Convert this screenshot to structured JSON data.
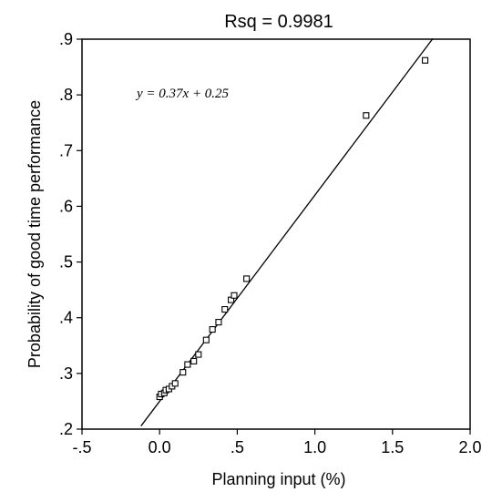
{
  "chart_data": {
    "type": "scatter",
    "title": "Rsq = 0.9981",
    "xlabel": "Planning input (%)",
    "ylabel": "Probability of good time performance",
    "xlim": [
      -0.5,
      2.0
    ],
    "ylim": [
      0.2,
      0.9
    ],
    "x_ticks": [
      {
        "value": -0.5,
        "label": "-.5"
      },
      {
        "value": 0.0,
        "label": "0.0"
      },
      {
        "value": 0.5,
        "label": ".5"
      },
      {
        "value": 1.0,
        "label": "1.0"
      },
      {
        "value": 1.5,
        "label": "1.5"
      },
      {
        "value": 2.0,
        "label": "2.0"
      }
    ],
    "y_ticks": [
      {
        "value": 0.2,
        "label": ".2"
      },
      {
        "value": 0.3,
        "label": ".3"
      },
      {
        "value": 0.4,
        "label": ".4"
      },
      {
        "value": 0.5,
        "label": ".5"
      },
      {
        "value": 0.6,
        "label": ".6"
      },
      {
        "value": 0.7,
        "label": ".7"
      },
      {
        "value": 0.8,
        "label": ".8"
      },
      {
        "value": 0.9,
        "label": ".9"
      }
    ],
    "annotation": "y = 0.37x + 0.25",
    "fit_line": {
      "slope": 0.37,
      "intercept": 0.25,
      "x_range": [
        -0.12,
        1.76
      ]
    },
    "grid": false,
    "marker": "hollow-square",
    "points": [
      {
        "x": 0.0,
        "y": 0.258
      },
      {
        "x": 0.01,
        "y": 0.263
      },
      {
        "x": 0.03,
        "y": 0.265
      },
      {
        "x": 0.04,
        "y": 0.27
      },
      {
        "x": 0.06,
        "y": 0.272
      },
      {
        "x": 0.08,
        "y": 0.277
      },
      {
        "x": 0.1,
        "y": 0.282
      },
      {
        "x": 0.15,
        "y": 0.302
      },
      {
        "x": 0.18,
        "y": 0.316
      },
      {
        "x": 0.22,
        "y": 0.322
      },
      {
        "x": 0.25,
        "y": 0.334
      },
      {
        "x": 0.3,
        "y": 0.36
      },
      {
        "x": 0.34,
        "y": 0.379
      },
      {
        "x": 0.38,
        "y": 0.392
      },
      {
        "x": 0.42,
        "y": 0.415
      },
      {
        "x": 0.46,
        "y": 0.432
      },
      {
        "x": 0.48,
        "y": 0.44
      },
      {
        "x": 0.56,
        "y": 0.47
      },
      {
        "x": 1.33,
        "y": 0.763
      },
      {
        "x": 1.71,
        "y": 0.862
      }
    ]
  }
}
